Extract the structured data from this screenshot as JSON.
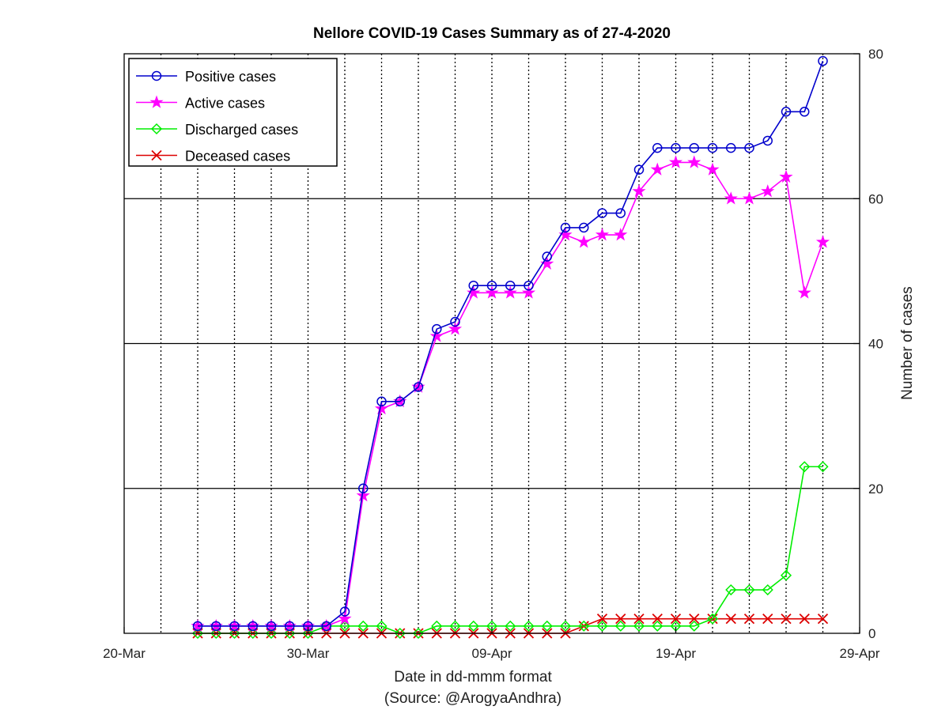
{
  "chart_data": {
    "type": "line",
    "title": "Nellore COVID-19 Cases Summary as of 27-4-2020",
    "xlabel": "Date in dd-mmm format",
    "xlabel2": "(Source: @ArogyaAndhra)",
    "ylabel": "Number of cases",
    "xlim": [
      "2020-03-20",
      "2020-04-29"
    ],
    "ylim": [
      0,
      80
    ],
    "y_axis_side": "right",
    "x_ticks": [
      "20-Mar",
      "30-Mar",
      "09-Apr",
      "19-Apr",
      "29-Apr"
    ],
    "y_ticks": [
      0,
      20,
      40,
      60,
      80
    ],
    "grid": {
      "x": "dotted",
      "y": "solid"
    },
    "legend_position": "top-left",
    "x": [
      "2020-03-24",
      "2020-03-25",
      "2020-03-26",
      "2020-03-27",
      "2020-03-28",
      "2020-03-29",
      "2020-03-30",
      "2020-03-31",
      "2020-04-01",
      "2020-04-02",
      "2020-04-03",
      "2020-04-04",
      "2020-04-05",
      "2020-04-06",
      "2020-04-07",
      "2020-04-08",
      "2020-04-09",
      "2020-04-10",
      "2020-04-11",
      "2020-04-12",
      "2020-04-13",
      "2020-04-14",
      "2020-04-15",
      "2020-04-16",
      "2020-04-17",
      "2020-04-18",
      "2020-04-19",
      "2020-04-20",
      "2020-04-21",
      "2020-04-22",
      "2020-04-23",
      "2020-04-24",
      "2020-04-25",
      "2020-04-26",
      "2020-04-27",
      "2020-04-28"
    ],
    "series": [
      {
        "name": "Positive cases",
        "color": "#0000cc",
        "marker": "circle",
        "values": [
          1,
          1,
          1,
          1,
          1,
          1,
          1,
          1,
          3,
          20,
          32,
          32,
          34,
          42,
          43,
          48,
          48,
          48,
          48,
          52,
          56,
          56,
          58,
          58,
          64,
          67,
          67,
          67,
          67,
          67,
          67,
          68,
          72,
          72,
          79,
          null
        ]
      },
      {
        "name": "Active cases",
        "color": "#ff00ff",
        "marker": "star",
        "values": [
          1,
          1,
          1,
          1,
          1,
          1,
          1,
          1,
          2,
          19,
          31,
          32,
          34,
          41,
          42,
          47,
          47,
          47,
          47,
          51,
          55,
          54,
          55,
          55,
          61,
          64,
          65,
          65,
          64,
          60,
          60,
          61,
          63,
          47,
          54,
          null
        ]
      },
      {
        "name": "Discharged cases",
        "color": "#00ee00",
        "marker": "diamond",
        "values": [
          0,
          0,
          0,
          0,
          0,
          0,
          0,
          1,
          1,
          1,
          1,
          0,
          0,
          1,
          1,
          1,
          1,
          1,
          1,
          1,
          1,
          1,
          1,
          1,
          1,
          1,
          1,
          1,
          2,
          6,
          6,
          6,
          8,
          23,
          23,
          null
        ]
      },
      {
        "name": "Deceased cases",
        "color": "#dd0000",
        "marker": "x",
        "values": [
          0,
          0,
          0,
          0,
          0,
          0,
          0,
          0,
          0,
          0,
          0,
          0,
          0,
          0,
          0,
          0,
          0,
          0,
          0,
          0,
          0,
          1,
          2,
          2,
          2,
          2,
          2,
          2,
          2,
          2,
          2,
          2,
          2,
          2,
          2,
          null
        ]
      }
    ]
  }
}
